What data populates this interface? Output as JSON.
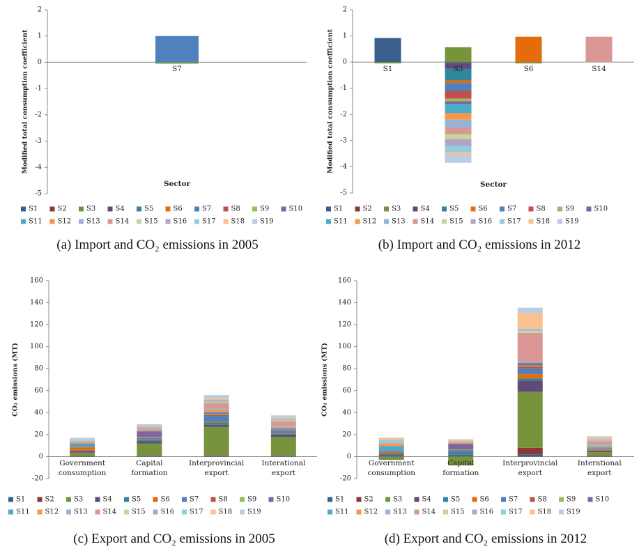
{
  "chart_data": [
    {
      "type": "bar",
      "stacked": true,
      "caption": "(a) Import and CO₂ emissions in 2005",
      "ylabel": "Modified total consumption coefficient",
      "xlabel": "Sector",
      "ylim": [
        -5,
        2
      ],
      "yticks": [
        -5,
        -4,
        -3,
        -2,
        -1,
        0,
        1,
        2
      ],
      "grid": false,
      "legend": "bottom",
      "categories": [
        "S7"
      ],
      "series": [
        {
          "name": "S1",
          "color": "#3A5F8F",
          "values": [
            0
          ]
        },
        {
          "name": "S2",
          "color": "#8C3836",
          "values": [
            0
          ]
        },
        {
          "name": "S3",
          "color": "#77933C",
          "values": [
            -0.03
          ]
        },
        {
          "name": "S4",
          "color": "#5F4A7B",
          "values": [
            0
          ]
        },
        {
          "name": "S5",
          "color": "#31859C",
          "values": [
            0
          ]
        },
        {
          "name": "S6",
          "color": "#E46C0A",
          "values": [
            0
          ]
        },
        {
          "name": "S7",
          "color": "#4F81BD",
          "values": [
            1.0
          ]
        },
        {
          "name": "S8",
          "color": "#C0504D",
          "values": [
            0
          ]
        },
        {
          "name": "S9",
          "color": "#9BBB59",
          "values": [
            -0.03
          ]
        },
        {
          "name": "S10",
          "color": "#8064A2",
          "values": [
            0
          ]
        },
        {
          "name": "S11",
          "color": "#4BACC6",
          "values": [
            0
          ]
        },
        {
          "name": "S12",
          "color": "#F79646",
          "values": [
            0
          ]
        },
        {
          "name": "S13",
          "color": "#95B3D7",
          "values": [
            0
          ]
        },
        {
          "name": "S14",
          "color": "#D99694",
          "values": [
            0
          ]
        },
        {
          "name": "S15",
          "color": "#C3D69B",
          "values": [
            0
          ]
        },
        {
          "name": "S16",
          "color": "#B3A2C7",
          "values": [
            0
          ]
        },
        {
          "name": "S17",
          "color": "#93CDDD",
          "values": [
            0
          ]
        },
        {
          "name": "S18",
          "color": "#FAC090",
          "values": [
            0
          ]
        },
        {
          "name": "S19",
          "color": "#B9CDE5",
          "values": [
            0
          ]
        }
      ]
    },
    {
      "type": "bar",
      "stacked": true,
      "caption": "(b) Import and CO₂ emissions in 2012",
      "ylabel": "Modified total consumption coefficient",
      "xlabel": "Sector",
      "ylim": [
        -5,
        2
      ],
      "yticks": [
        -5,
        -4,
        -3,
        -2,
        -1,
        0,
        1,
        2
      ],
      "grid": false,
      "legend": "bottom",
      "categories": [
        "S1",
        "S3",
        "S6",
        "S14"
      ],
      "series": [
        {
          "name": "S1",
          "color": "#3A5F8F",
          "values": [
            0.92,
            -0.03,
            0,
            0
          ]
        },
        {
          "name": "S2",
          "color": "#8C3836",
          "values": [
            0,
            -0.02,
            0,
            0
          ]
        },
        {
          "name": "S3",
          "color": "#77933C",
          "values": [
            -0.05,
            0.57,
            -0.05,
            0
          ]
        },
        {
          "name": "S4",
          "color": "#5F4A7B",
          "values": [
            0,
            -0.2,
            0,
            0
          ]
        },
        {
          "name": "S5",
          "color": "#31859C",
          "values": [
            0,
            -0.45,
            0,
            0
          ]
        },
        {
          "name": "S6",
          "color": "#E46C0A",
          "values": [
            0,
            -0.1,
            0.97,
            0
          ]
        },
        {
          "name": "S7",
          "color": "#4F81BD",
          "values": [
            0,
            -0.3,
            0,
            0
          ]
        },
        {
          "name": "S8",
          "color": "#C0504D",
          "values": [
            0,
            -0.3,
            0,
            0
          ]
        },
        {
          "name": "S9",
          "color": "#9BBB59",
          "values": [
            0,
            -0.1,
            0,
            0
          ]
        },
        {
          "name": "S10",
          "color": "#8064A2",
          "values": [
            0,
            -0.1,
            0,
            0
          ]
        },
        {
          "name": "S11",
          "color": "#4BACC6",
          "values": [
            0,
            -0.35,
            0,
            0
          ]
        },
        {
          "name": "S12",
          "color": "#F79646",
          "values": [
            0,
            -0.25,
            0,
            0
          ]
        },
        {
          "name": "S13",
          "color": "#95B3D7",
          "values": [
            0,
            -0.3,
            0,
            0
          ]
        },
        {
          "name": "S14",
          "color": "#D99694",
          "values": [
            0,
            -0.25,
            0,
            0.97
          ]
        },
        {
          "name": "S15",
          "color": "#C3D69B",
          "values": [
            0,
            -0.2,
            0,
            0
          ]
        },
        {
          "name": "S16",
          "color": "#B3A2C7",
          "values": [
            0,
            -0.25,
            0,
            0
          ]
        },
        {
          "name": "S17",
          "color": "#93CDDD",
          "values": [
            0,
            -0.25,
            0,
            0
          ]
        },
        {
          "name": "S18",
          "color": "#FAC090",
          "values": [
            0,
            -0.1,
            0,
            0
          ]
        },
        {
          "name": "S19",
          "color": "#B9CDE5",
          "values": [
            0,
            -0.3,
            0,
            0
          ]
        }
      ]
    },
    {
      "type": "bar",
      "stacked": true,
      "caption": "(c) Export and CO₂ emissions in 2005",
      "ylabel": "CO₂ emissions (MT)",
      "ylim": [
        -20,
        160
      ],
      "yticks": [
        -20,
        0,
        20,
        40,
        60,
        80,
        100,
        120,
        140,
        160
      ],
      "grid": false,
      "legend": "bottom",
      "categories": [
        "Government consumption",
        "Capital formation",
        "Interprovincial export",
        "Interational export"
      ],
      "series": [
        {
          "name": "S1",
          "color": "#3A5F8F",
          "values": [
            0.3,
            0.5,
            0.5,
            0.5
          ]
        },
        {
          "name": "S2",
          "color": "#8C3836",
          "values": [
            0.3,
            0.5,
            0.5,
            0.5
          ]
        },
        {
          "name": "S3",
          "color": "#77933C",
          "values": [
            3,
            11,
            26,
            17
          ]
        },
        {
          "name": "S4",
          "color": "#5F4A7B",
          "values": [
            1.5,
            2,
            2,
            2
          ]
        },
        {
          "name": "S5",
          "color": "#31859C",
          "values": [
            0.5,
            1,
            2,
            1
          ]
        },
        {
          "name": "S6",
          "color": "#E46C0A",
          "values": [
            2.5,
            0.5,
            1,
            0.5
          ]
        },
        {
          "name": "S7",
          "color": "#4F81BD",
          "values": [
            0.5,
            1.5,
            5,
            2
          ]
        },
        {
          "name": "S8",
          "color": "#C0504D",
          "values": [
            0.5,
            0.5,
            1,
            0.5
          ]
        },
        {
          "name": "S9",
          "color": "#9BBB59",
          "values": [
            0.5,
            0.5,
            1,
            0.5
          ]
        },
        {
          "name": "S10",
          "color": "#8064A2",
          "values": [
            0.5,
            5,
            1,
            0.5
          ]
        },
        {
          "name": "S11",
          "color": "#4BACC6",
          "values": [
            2,
            0.5,
            1,
            1
          ]
        },
        {
          "name": "S12",
          "color": "#F79646",
          "values": [
            1,
            1,
            2,
            1
          ]
        },
        {
          "name": "S13",
          "color": "#95B3D7",
          "values": [
            0.5,
            0.5,
            1,
            1
          ]
        },
        {
          "name": "S14",
          "color": "#D99694",
          "values": [
            0.5,
            1.5,
            5,
            4
          ]
        },
        {
          "name": "S15",
          "color": "#C3D69B",
          "values": [
            0.3,
            0.5,
            1,
            1
          ]
        },
        {
          "name": "S16",
          "color": "#B3A2C7",
          "values": [
            0.3,
            0.5,
            1,
            0.5
          ]
        },
        {
          "name": "S17",
          "color": "#93CDDD",
          "values": [
            1,
            0.5,
            1,
            1
          ]
        },
        {
          "name": "S18",
          "color": "#FAC090",
          "values": [
            0.3,
            0.5,
            1.5,
            1
          ]
        },
        {
          "name": "S19",
          "color": "#B9CDE5",
          "values": [
            1,
            1,
            2.5,
            2
          ]
        }
      ]
    },
    {
      "type": "bar",
      "stacked": true,
      "caption": "(d) Export and CO₂ emissions in 2012",
      "ylabel": "CO₂ emissions (MT)",
      "ylim": [
        -20,
        160
      ],
      "yticks": [
        -20,
        0,
        20,
        40,
        60,
        80,
        100,
        120,
        140,
        160
      ],
      "grid": false,
      "legend": "bottom",
      "categories": [
        "Government consumption",
        "Capital formation",
        "Interprovincial export",
        "Interational export"
      ],
      "series": [
        {
          "name": "S1",
          "color": "#3A5F8F",
          "values": [
            0.5,
            0.5,
            2,
            0.5
          ]
        },
        {
          "name": "S2",
          "color": "#8C3836",
          "values": [
            0.3,
            0.2,
            6,
            0.5
          ]
        },
        {
          "name": "S3",
          "color": "#77933C",
          "values": [
            -3,
            -8,
            51,
            3
          ]
        },
        {
          "name": "S4",
          "color": "#5F4A7B",
          "values": [
            1,
            1,
            10,
            1
          ]
        },
        {
          "name": "S5",
          "color": "#31859C",
          "values": [
            1,
            3,
            2,
            0.5
          ]
        },
        {
          "name": "S6",
          "color": "#E46C0A",
          "values": [
            1,
            0.5,
            4,
            0.5
          ]
        },
        {
          "name": "S7",
          "color": "#4F81BD",
          "values": [
            1,
            1,
            5,
            0.5
          ]
        },
        {
          "name": "S8",
          "color": "#C0504D",
          "values": [
            0.3,
            0.2,
            2,
            0.5
          ]
        },
        {
          "name": "S9",
          "color": "#9BBB59",
          "values": [
            0.3,
            0.2,
            1,
            0.5
          ]
        },
        {
          "name": "S10",
          "color": "#8064A2",
          "values": [
            0.3,
            5,
            2,
            0.5
          ]
        },
        {
          "name": "S11",
          "color": "#4BACC6",
          "values": [
            4,
            0.3,
            0.5,
            1
          ]
        },
        {
          "name": "S12",
          "color": "#F79646",
          "values": [
            2,
            1,
            0.5,
            1
          ]
        },
        {
          "name": "S13",
          "color": "#95B3D7",
          "values": [
            0.5,
            0.2,
            0.5,
            1
          ]
        },
        {
          "name": "S14",
          "color": "#D99694",
          "values": [
            0.5,
            0.5,
            26,
            3
          ]
        },
        {
          "name": "S15",
          "color": "#C3D69B",
          "values": [
            0.3,
            0.2,
            2,
            0.5
          ]
        },
        {
          "name": "S16",
          "color": "#B3A2C7",
          "values": [
            0.3,
            0.2,
            1,
            0.5
          ]
        },
        {
          "name": "S17",
          "color": "#93CDDD",
          "values": [
            2,
            0.5,
            1,
            1
          ]
        },
        {
          "name": "S18",
          "color": "#FAC090",
          "values": [
            1.5,
            1,
            14,
            2
          ]
        },
        {
          "name": "S19",
          "color": "#B9CDE5",
          "values": [
            0.5,
            0.3,
            5,
            0.5
          ]
        }
      ]
    }
  ]
}
